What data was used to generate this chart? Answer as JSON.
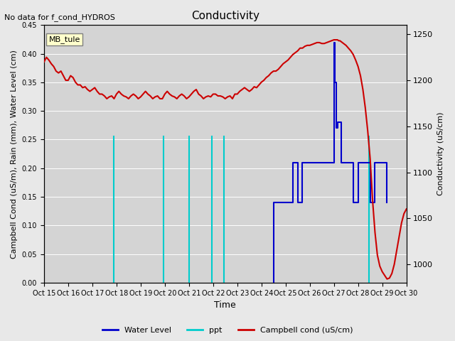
{
  "title": "Conductivity",
  "no_data_text": "No data for f_cond_HYDROS",
  "ylabel_left": "Campbell Cond (uS/m), Rain (mm), Water Level (cm)",
  "ylabel_right": "Conductivity (uS/cm)",
  "xlabel": "Time",
  "ylim_left": [
    0.0,
    0.45
  ],
  "ylim_right": [
    980,
    1260
  ],
  "background_color": "#e8e8e8",
  "plot_bg_color": "#d8d8d8",
  "legend_box_label": "MB_tule",
  "legend_box_color": "#ffffcc",
  "x_start": 15,
  "x_end": 30,
  "x_ticks": [
    15,
    16,
    17,
    18,
    19,
    20,
    21,
    22,
    23,
    24,
    25,
    26,
    27,
    28,
    29,
    30
  ],
  "x_tick_labels": [
    "Oct 15",
    "Oct 16",
    "Oct 17",
    "Oct 18",
    "Oct 19",
    "Oct 20",
    "Oct 21",
    "Oct 22",
    "Oct 23",
    "Oct 24",
    "Oct 25",
    "Oct 26",
    "Oct 27",
    "Oct 28",
    "Oct 29",
    "Oct 30"
  ],
  "water_level_color": "#0000cc",
  "ppt_color": "#00cccc",
  "campbell_color": "#cc0000",
  "water_level_segments": [
    {
      "x": [
        24.5,
        24.5,
        25.3,
        25.3,
        25.5,
        25.5,
        25.7,
        25.7,
        26.0,
        26.0,
        26.4,
        26.4,
        26.6,
        26.6,
        27.0,
        27.0,
        27.05,
        27.05,
        27.1,
        27.1,
        27.15,
        27.15,
        27.3,
        27.3,
        27.5,
        27.5,
        27.8,
        27.8,
        28.0,
        28.0,
        28.1,
        28.1,
        28.2,
        28.2,
        28.5,
        28.5,
        28.7,
        28.7,
        29.0,
        29.0,
        29.2,
        29.2
      ],
      "y": [
        0.0,
        0.14,
        0.14,
        0.21,
        0.21,
        0.14,
        0.14,
        0.21,
        0.21,
        0.21,
        0.21,
        0.21,
        0.21,
        0.21,
        0.21,
        0.42,
        0.42,
        0.35,
        0.35,
        0.27,
        0.27,
        0.28,
        0.28,
        0.21,
        0.21,
        0.21,
        0.21,
        0.14,
        0.14,
        0.21,
        0.21,
        0.21,
        0.21,
        0.21,
        0.21,
        0.14,
        0.14,
        0.21,
        0.21,
        0.21,
        0.21,
        0.14
      ]
    }
  ],
  "ppt_spikes": [
    17.9,
    19.95,
    21.0,
    21.95,
    22.45,
    28.45
  ],
  "ppt_height": 0.255,
  "campbell_data": {
    "x": [
      15.0,
      15.1,
      15.2,
      15.3,
      15.4,
      15.5,
      15.6,
      15.7,
      15.8,
      15.9,
      16.0,
      16.1,
      16.2,
      16.3,
      16.4,
      16.5,
      16.6,
      16.7,
      16.8,
      16.9,
      17.0,
      17.1,
      17.2,
      17.3,
      17.4,
      17.5,
      17.6,
      17.7,
      17.8,
      17.9,
      18.0,
      18.1,
      18.2,
      18.3,
      18.4,
      18.5,
      18.6,
      18.7,
      18.8,
      18.9,
      19.0,
      19.1,
      19.2,
      19.3,
      19.4,
      19.5,
      19.6,
      19.7,
      19.8,
      19.9,
      20.0,
      20.1,
      20.2,
      20.3,
      20.4,
      20.5,
      20.6,
      20.7,
      20.8,
      20.9,
      21.0,
      21.1,
      21.2,
      21.3,
      21.4,
      21.5,
      21.6,
      21.7,
      21.8,
      21.9,
      22.0,
      22.1,
      22.2,
      22.3,
      22.4,
      22.5,
      22.6,
      22.7,
      22.8,
      22.9,
      23.0,
      23.1,
      23.2,
      23.3,
      23.4,
      23.5,
      23.6,
      23.7,
      23.8,
      23.9,
      24.0,
      24.1,
      24.2,
      24.3,
      24.4,
      24.5,
      24.6,
      24.7,
      24.8,
      24.9,
      25.0,
      25.1,
      25.2,
      25.3,
      25.4,
      25.5,
      25.6,
      25.7,
      25.8,
      25.9,
      26.0,
      26.1,
      26.2,
      26.3,
      26.4,
      26.5,
      26.6,
      26.7,
      26.8,
      26.9,
      27.0,
      27.05,
      27.1,
      27.15,
      27.2,
      27.25,
      27.3,
      27.4,
      27.5,
      27.6,
      27.7,
      27.8,
      27.9,
      28.0,
      28.1,
      28.2,
      28.3,
      28.4,
      28.5,
      28.6,
      28.7,
      28.8,
      28.9,
      29.0,
      29.1,
      29.2,
      29.3,
      29.4,
      29.5,
      29.6,
      29.7,
      29.8,
      29.9,
      30.0
    ],
    "y": [
      1220,
      1225,
      1222,
      1218,
      1215,
      1210,
      1208,
      1210,
      1205,
      1200,
      1200,
      1205,
      1203,
      1198,
      1195,
      1195,
      1192,
      1193,
      1190,
      1188,
      1190,
      1192,
      1188,
      1185,
      1185,
      1183,
      1180,
      1182,
      1183,
      1180,
      1185,
      1188,
      1185,
      1183,
      1182,
      1180,
      1183,
      1185,
      1183,
      1180,
      1182,
      1185,
      1188,
      1185,
      1183,
      1180,
      1182,
      1183,
      1180,
      1180,
      1185,
      1188,
      1185,
      1183,
      1182,
      1180,
      1183,
      1185,
      1183,
      1180,
      1182,
      1185,
      1188,
      1190,
      1185,
      1183,
      1180,
      1182,
      1183,
      1182,
      1185,
      1185,
      1183,
      1183,
      1182,
      1180,
      1182,
      1183,
      1180,
      1185,
      1185,
      1188,
      1190,
      1192,
      1190,
      1188,
      1190,
      1193,
      1192,
      1195,
      1198,
      1200,
      1203,
      1205,
      1208,
      1210,
      1210,
      1212,
      1215,
      1218,
      1220,
      1222,
      1225,
      1228,
      1230,
      1232,
      1235,
      1235,
      1237,
      1238,
      1238,
      1239,
      1240,
      1241,
      1241,
      1240,
      1240,
      1241,
      1242,
      1243,
      1244,
      1244,
      1244,
      1244,
      1243,
      1243,
      1242,
      1240,
      1238,
      1235,
      1232,
      1228,
      1222,
      1215,
      1205,
      1190,
      1170,
      1145,
      1115,
      1070,
      1035,
      1010,
      998,
      992,
      988,
      984,
      985,
      990,
      1000,
      1015,
      1030,
      1045,
      1055,
      1060
    ]
  }
}
